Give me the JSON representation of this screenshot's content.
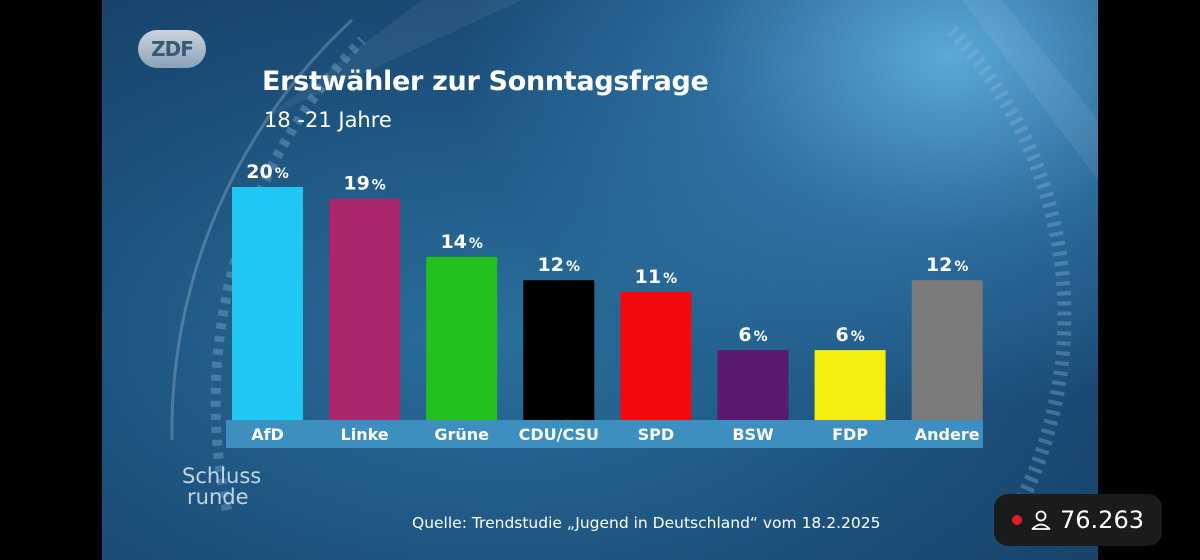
{
  "broadcaster": {
    "logo_text": "ZDF"
  },
  "show": {
    "logo_line1": "Schluss",
    "logo_line2": "runde"
  },
  "chart_data": {
    "type": "bar",
    "title": "Erstwähler zur Sonntagsfrage",
    "subtitle": "18 -21 Jahre",
    "categories": [
      "AfD",
      "Linke",
      "Grüne",
      "CDU/CSU",
      "SPD",
      "BSW",
      "FDP",
      "Andere"
    ],
    "values": [
      20,
      19,
      14,
      12,
      11,
      6,
      6,
      12
    ],
    "value_suffix": "%",
    "colors": [
      "#1ec8f2",
      "#a8276d",
      "#22c11e",
      "#000000",
      "#f20a0a",
      "#5a1b6e",
      "#f6ee10",
      "#7a7a7a"
    ],
    "label_band_color": "#3c8fbf",
    "ylim": [
      0,
      20
    ],
    "grid": false,
    "legend": "none"
  },
  "source": "Quelle: Trendstudie „Jugend in Deutschland“ vom 18.2.2025",
  "viewer": {
    "count": "76.263",
    "live_color": "#e8192c"
  }
}
